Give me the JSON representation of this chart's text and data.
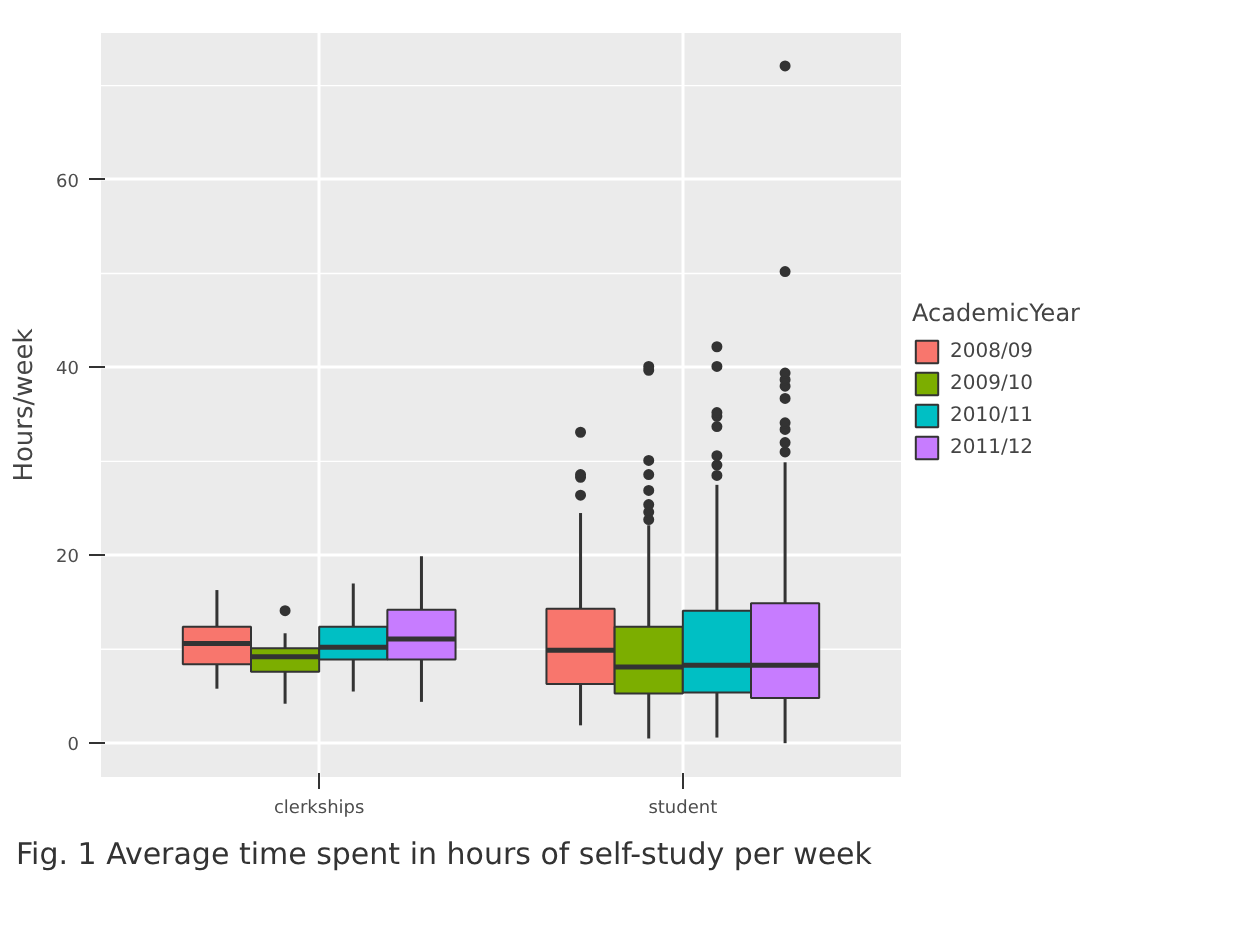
{
  "chart_data": {
    "type": "box",
    "ylabel": "Hours/week",
    "legend_title": "AcademicYear",
    "categories": [
      "clerkships",
      "student"
    ],
    "ylim": [
      -3.6,
      75.6
    ],
    "yticks": [
      0,
      20,
      40,
      60
    ],
    "grid": true,
    "legend": "right",
    "annotations": [
      "Fig. 1 Average time spent in hours of self-study per week"
    ],
    "series": [
      {
        "name": "2008/09",
        "color": "#f8766d",
        "boxes": [
          {
            "low": 5.8,
            "q1": 8.4,
            "median": 10.6,
            "q3": 12.4,
            "high": 16.3
          },
          {
            "low": 1.9,
            "q1": 6.3,
            "median": 9.9,
            "q3": 14.3,
            "high": 24.5,
            "outliers": [
              26.4,
              28.3,
              28.6,
              33.1
            ]
          }
        ]
      },
      {
        "name": "2009/10",
        "color": "#7cae00",
        "boxes": [
          {
            "low": 4.2,
            "q1": 7.6,
            "median": 9.2,
            "q3": 10.1,
            "high": 11.7,
            "outliers": [
              14.1
            ]
          },
          {
            "low": 0.5,
            "q1": 5.3,
            "median": 8.1,
            "q3": 12.4,
            "high": 23.2,
            "outliers": [
              23.8,
              24.6,
              25.4,
              26.9,
              28.6,
              30.1,
              39.7,
              40.1
            ]
          }
        ]
      },
      {
        "name": "2010/11",
        "color": "#00bfc4",
        "boxes": [
          {
            "low": 5.5,
            "q1": 8.9,
            "median": 10.2,
            "q3": 12.4,
            "high": 17.0
          },
          {
            "low": 0.6,
            "q1": 5.4,
            "median": 8.3,
            "q3": 14.1,
            "high": 27.5,
            "outliers": [
              28.5,
              29.6,
              30.6,
              33.7,
              34.8,
              35.2,
              40.1,
              42.2
            ]
          }
        ]
      },
      {
        "name": "2011/12",
        "color": "#c77cff",
        "boxes": [
          {
            "low": 4.4,
            "q1": 8.9,
            "median": 11.1,
            "q3": 14.2,
            "high": 19.9
          },
          {
            "low": 0,
            "q1": 4.8,
            "median": 8.3,
            "q3": 14.9,
            "high": 29.9,
            "outliers": [
              31.0,
              32.0,
              33.4,
              34.1,
              36.7,
              38.0,
              38.7,
              39.4,
              50.2,
              72.1
            ]
          }
        ]
      }
    ]
  }
}
